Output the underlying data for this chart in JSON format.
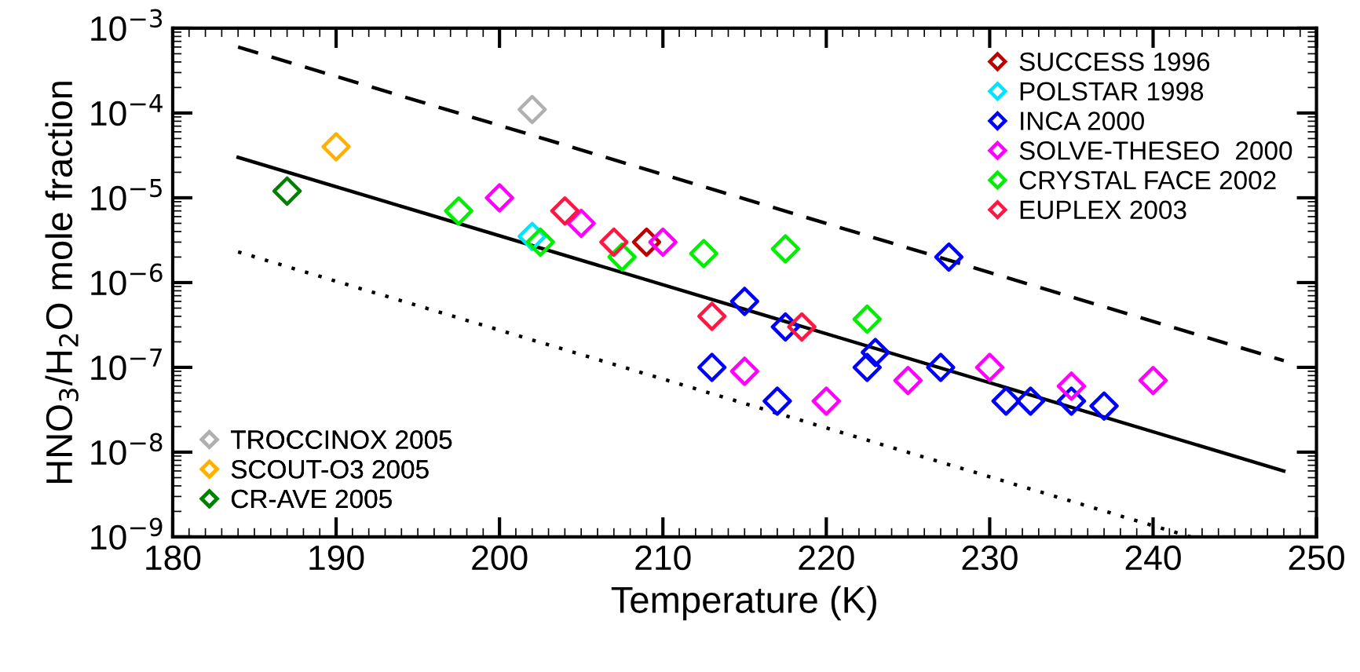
{
  "chart_data": {
    "type": "scatter",
    "xlabel": "Temperature (K)",
    "ylabel": "HNO$_{3}$/H$_{2}$O mole fraction",
    "xlim": [
      180,
      250
    ],
    "xticks": [
      180,
      190,
      200,
      210,
      220,
      230,
      240,
      250
    ],
    "ylim": [
      1e-09,
      0.001
    ],
    "log": "y",
    "yticks": [
      {
        "value": 1e-09,
        "label": "10$^{−9}$"
      },
      {
        "value": 1e-08,
        "label": "10$^{−8}$"
      },
      {
        "value": 1e-07,
        "label": "10$^{−7}$"
      },
      {
        "value": 1e-06,
        "label": "10$^{−6}$"
      },
      {
        "value": 1e-05,
        "label": "10$^{−5}$"
      },
      {
        "value": 0.0001,
        "label": "10$^{−4}$"
      },
      {
        "value": 0.001,
        "label": "10$^{−3}$"
      }
    ],
    "marker": "diamond",
    "legend": [
      "top right",
      "bottom left"
    ],
    "grid": false,
    "series": [
      {
        "name": "SUCCESS 1996",
        "color": "#c00000",
        "x": [
          209
        ],
        "values": [
          3e-06
        ]
      },
      {
        "name": "POLSTAR 1998",
        "color": "#00e5ff",
        "x": [
          202
        ],
        "values": [
          3.5e-06
        ]
      },
      {
        "name": "INCA 2000",
        "color": "#0000ff",
        "x": [
          215,
          217.5,
          213,
          217,
          222.5,
          223,
          227.5,
          227,
          231,
          232.5,
          235,
          237
        ],
        "values": [
          6e-07,
          3e-07,
          1e-07,
          4e-08,
          1e-07,
          1.5e-07,
          2e-06,
          1e-07,
          4e-08,
          4e-08,
          4e-08,
          3.5e-08
        ]
      },
      {
        "name": "SOLVE-THESEO  2000",
        "color": "#ff00ff",
        "x": [
          200,
          205,
          210,
          215,
          220,
          225,
          230,
          235,
          240
        ],
        "values": [
          1e-05,
          5e-06,
          3e-06,
          9e-08,
          4e-08,
          7e-08,
          1e-07,
          6e-08,
          7e-08
        ]
      },
      {
        "name": "CRYSTAL FACE 2002",
        "color": "#00ee00",
        "x": [
          197.5,
          202.5,
          207.5,
          212.5,
          217.5,
          222.5
        ],
        "values": [
          7e-06,
          3e-06,
          2e-06,
          2.2e-06,
          2.5e-06,
          3.7e-07
        ]
      },
      {
        "name": "EUPLEX 2003",
        "color": "#ff1744",
        "x": [
          204,
          207,
          213,
          218.5
        ],
        "values": [
          7e-06,
          3e-06,
          4e-07,
          3e-07
        ]
      },
      {
        "name": "TROCCINOX 2005",
        "color": "#b0b0b0",
        "x": [
          202
        ],
        "values": [
          0.00011
        ]
      },
      {
        "name": "SCOUT-O3 2005",
        "color": "#ffb000",
        "x": [
          190
        ],
        "values": [
          4e-05
        ]
      },
      {
        "name": "CR-AVE 2005",
        "color": "#008000",
        "x": [
          187
        ],
        "values": [
          1.2e-05
        ]
      },
      {
        "type": "line",
        "color": "#000000",
        "line_style": "solid",
        "marker": "none",
        "x": [
          184,
          248
        ],
        "values": [
          3e-05,
          6e-09
        ]
      },
      {
        "type": "line",
        "color": "#000000",
        "line_style": "dashed",
        "marker": "none",
        "x": [
          184,
          248
        ],
        "values": [
          0.0006,
          1.2e-07
        ]
      },
      {
        "type": "line",
        "color": "#000000",
        "line_style": "dotted",
        "marker": "none",
        "x": [
          184,
          242.3
        ],
        "values": [
          2.3e-06,
          1e-09
        ]
      }
    ]
  }
}
